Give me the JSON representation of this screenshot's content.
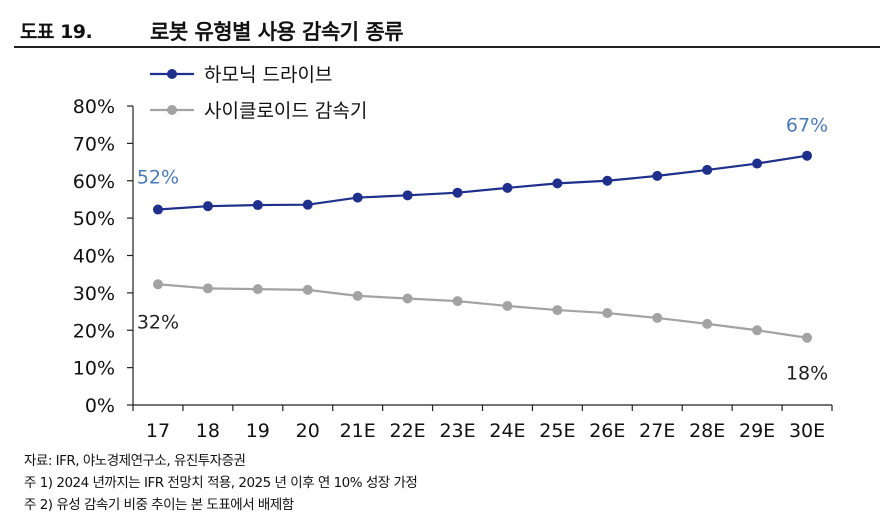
{
  "header": {
    "figure_number": "도표 19.",
    "title": "로봇 유형별 사용 감속기 종류"
  },
  "chart_data": {
    "type": "line",
    "categories": [
      "17",
      "18",
      "19",
      "20",
      "21E",
      "22E",
      "23E",
      "24E",
      "25E",
      "26E",
      "27E",
      "28E",
      "29E",
      "30E"
    ],
    "ylim": [
      0,
      80
    ],
    "yticks": [
      "0%",
      "10%",
      "20%",
      "30%",
      "40%",
      "50%",
      "60%",
      "70%",
      "80%"
    ],
    "series": [
      {
        "name": "하모닉 드라이브",
        "color": "#1f2f8c",
        "values": [
          52.3,
          53.2,
          53.5,
          53.6,
          55.5,
          56.1,
          56.8,
          58.1,
          59.3,
          60.0,
          61.3,
          62.9,
          64.6,
          66.7
        ]
      },
      {
        "name": "사이클로이드 감속기",
        "color": "#a3a3a3",
        "values": [
          32.3,
          31.2,
          31.0,
          30.8,
          29.2,
          28.5,
          27.8,
          26.5,
          25.4,
          24.6,
          23.3,
          21.7,
          20.0,
          18.0
        ]
      }
    ],
    "annotations": [
      {
        "text": "52%",
        "series": 0,
        "index": 0,
        "color": "#4a7ab8"
      },
      {
        "text": "67%",
        "series": 0,
        "index": 13,
        "color": "#4a7ab8"
      },
      {
        "text": "32%",
        "series": 1,
        "index": 0,
        "color": "#222222"
      },
      {
        "text": "18%",
        "series": 1,
        "index": 13,
        "color": "#222222"
      }
    ]
  },
  "notes": {
    "source": "자료:  IFR, 야노경제연구소, 유진투자증권",
    "note1": "주 1) 2024 년까지는 IFR 전망치 적용, 2025 년 이후 연 10% 성장 가정",
    "note2": "주 2) 유성 감속기 비중 추이는 본 도표에서 배제함"
  }
}
